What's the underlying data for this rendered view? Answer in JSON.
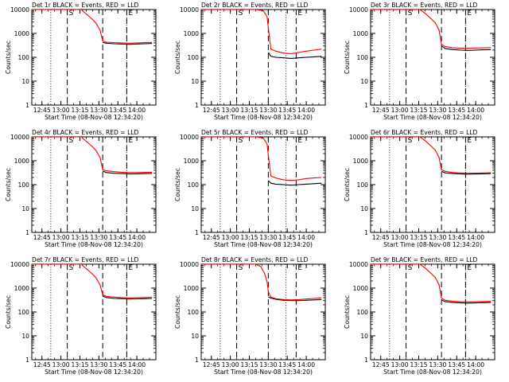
{
  "chart_data": [
    {
      "type": "line",
      "title": "Det 1r BLACK = Events, RED = LLD",
      "xlabel": "Start Time (08-Nov-08 12:34:20)",
      "ylabel": "Counts/sec",
      "y_scale": "log",
      "ylim": [
        1,
        10000
      ],
      "xlim": [
        "12:37",
        "14:15"
      ],
      "x_ticks": [
        "12:45",
        "13:00",
        "13:15",
        "13:30",
        "13:45",
        "14:00"
      ],
      "y_ticks": [
        "1",
        "10",
        "100",
        "1000",
        "10000"
      ],
      "markers": [
        {
          "label": "S",
          "x": "13:05"
        },
        {
          "label": "",
          "x": "13:33"
        },
        {
          "label": "E",
          "x": "13:52"
        }
      ],
      "reference_lines": [
        "12:52",
        "13:52"
      ],
      "series": [
        {
          "color": "#ff0000",
          "x": [
            "12:37",
            "13:05",
            "13:10",
            "13:16",
            "13:20",
            "13:24",
            "13:28",
            "13:31",
            "13:33",
            "13:36",
            "13:42",
            "13:48",
            "13:54",
            "14:00",
            "14:06",
            "14:12"
          ],
          "y": [
            10000,
            10000,
            10000,
            10000,
            6500,
            4300,
            2600,
            1300,
            480,
            430,
            410,
            400,
            390,
            400,
            410,
            420
          ]
        },
        {
          "color": "#000000",
          "x": [
            "13:33",
            "13:36",
            "13:42",
            "13:48",
            "13:54",
            "14:00",
            "14:06",
            "14:12"
          ],
          "y": [
            420,
            390,
            370,
            360,
            350,
            360,
            370,
            380
          ]
        }
      ]
    },
    {
      "type": "line",
      "title": "Det 2r BLACK = Events, RED = LLD",
      "xlabel": "Start Time (08-Nov-08 12:34:20)",
      "ylabel": "Counts/sec",
      "y_scale": "log",
      "ylim": [
        1,
        10000
      ],
      "xlim": [
        "12:37",
        "14:15"
      ],
      "x_ticks": [
        "12:45",
        "13:00",
        "13:15",
        "13:30",
        "13:45",
        "14:00"
      ],
      "y_ticks": [
        "1",
        "10",
        "100",
        "1000",
        "10000"
      ],
      "markers": [
        {
          "label": "S",
          "x": "13:05"
        },
        {
          "label": "",
          "x": "13:30"
        },
        {
          "label": "E",
          "x": "13:52"
        }
      ],
      "reference_lines": [
        "12:52",
        "13:44"
      ],
      "series": [
        {
          "color": "#ff0000",
          "x": [
            "12:37",
            "13:10",
            "13:20",
            "13:26",
            "13:29",
            "13:30",
            "13:32",
            "13:36",
            "13:42",
            "13:48",
            "13:54",
            "14:00",
            "14:06",
            "14:12"
          ],
          "y": [
            10000,
            10000,
            10000,
            9000,
            5000,
            1700,
            220,
            180,
            150,
            140,
            160,
            180,
            200,
            220
          ]
        },
        {
          "color": "#000000",
          "x": [
            "13:30",
            "13:32",
            "13:36",
            "13:42",
            "13:48",
            "13:54",
            "14:00",
            "14:06",
            "14:12"
          ],
          "y": [
            160,
            110,
            100,
            95,
            90,
            95,
            100,
            105,
            110
          ]
        }
      ]
    },
    {
      "type": "line",
      "title": "Det 3r BLACK = Events, RED = LLD",
      "xlabel": "Start Time (08-Nov-08 12:34:20)",
      "ylabel": "Counts/sec",
      "y_scale": "log",
      "ylim": [
        1,
        10000
      ],
      "xlim": [
        "12:37",
        "14:15"
      ],
      "x_ticks": [
        "12:45",
        "13:00",
        "13:15",
        "13:30",
        "13:45",
        "14:00"
      ],
      "y_ticks": [
        "1",
        "10",
        "100",
        "1000",
        "10000"
      ],
      "markers": [
        {
          "label": "S",
          "x": "13:05"
        },
        {
          "label": "",
          "x": "13:33"
        },
        {
          "label": "E",
          "x": "13:52"
        }
      ],
      "reference_lines": [
        "12:52",
        "13:52"
      ],
      "series": [
        {
          "color": "#ff0000",
          "x": [
            "12:37",
            "13:10",
            "13:16",
            "13:20",
            "13:24",
            "13:28",
            "13:31",
            "13:33",
            "13:36",
            "13:42",
            "13:48",
            "13:54",
            "14:00",
            "14:06",
            "14:12"
          ],
          "y": [
            10000,
            10000,
            10000,
            7000,
            4500,
            2800,
            1400,
            350,
            280,
            250,
            240,
            240,
            245,
            250,
            255
          ]
        },
        {
          "color": "#000000",
          "x": [
            "13:33",
            "13:36",
            "13:42",
            "13:48",
            "13:54",
            "14:00",
            "14:06",
            "14:12"
          ],
          "y": [
            300,
            230,
            210,
            200,
            195,
            200,
            205,
            210
          ]
        }
      ]
    },
    {
      "type": "line",
      "title": "Det 4r BLACK = Events, RED = LLD",
      "xlabel": "Start Time (08-Nov-08 12:34:20)",
      "ylabel": "Counts/sec",
      "y_scale": "log",
      "ylim": [
        1,
        10000
      ],
      "xlim": [
        "12:37",
        "14:15"
      ],
      "x_ticks": [
        "12:45",
        "13:00",
        "13:15",
        "13:30",
        "13:45",
        "14:00"
      ],
      "y_ticks": [
        "1",
        "10",
        "100",
        "1000",
        "10000"
      ],
      "markers": [
        {
          "label": "S",
          "x": "13:05"
        },
        {
          "label": "",
          "x": "13:33"
        },
        {
          "label": "E",
          "x": "13:52"
        }
      ],
      "reference_lines": [
        "12:52",
        "13:52"
      ],
      "series": [
        {
          "color": "#ff0000",
          "x": [
            "12:37",
            "13:05",
            "13:10",
            "13:16",
            "13:20",
            "13:24",
            "13:28",
            "13:31",
            "13:33",
            "13:36",
            "13:42",
            "13:48",
            "13:54",
            "14:00",
            "14:06",
            "14:12"
          ],
          "y": [
            10000,
            10000,
            10000,
            10000,
            6500,
            4300,
            2600,
            1300,
            420,
            380,
            350,
            330,
            320,
            320,
            325,
            330
          ]
        },
        {
          "color": "#000000",
          "x": [
            "13:33",
            "13:36",
            "13:42",
            "13:48",
            "13:54",
            "14:00",
            "14:06",
            "14:12"
          ],
          "y": [
            370,
            320,
            300,
            290,
            280,
            285,
            290,
            295
          ]
        }
      ]
    },
    {
      "type": "line",
      "title": "Det 5r BLACK = Events, RED = LLD",
      "xlabel": "Start Time (08-Nov-08 12:34:20)",
      "ylabel": "Counts/sec",
      "y_scale": "log",
      "ylim": [
        1,
        10000
      ],
      "xlim": [
        "12:37",
        "14:15"
      ],
      "x_ticks": [
        "12:45",
        "13:00",
        "13:15",
        "13:30",
        "13:45",
        "14:00"
      ],
      "y_ticks": [
        "1",
        "10",
        "100",
        "1000",
        "10000"
      ],
      "markers": [
        {
          "label": "S",
          "x": "13:05"
        },
        {
          "label": "",
          "x": "13:30"
        },
        {
          "label": "E",
          "x": "13:52"
        }
      ],
      "reference_lines": [
        "12:52",
        "13:44"
      ],
      "series": [
        {
          "color": "#ff0000",
          "x": [
            "12:37",
            "13:10",
            "13:20",
            "13:26",
            "13:29",
            "13:30",
            "13:32",
            "13:36",
            "13:42",
            "13:48",
            "13:54",
            "14:00",
            "14:06",
            "14:12"
          ],
          "y": [
            10000,
            10000,
            10000,
            9000,
            5000,
            1700,
            230,
            190,
            160,
            150,
            160,
            180,
            190,
            200
          ]
        },
        {
          "color": "#000000",
          "x": [
            "13:30",
            "13:32",
            "13:36",
            "13:42",
            "13:48",
            "13:54",
            "14:00",
            "14:06",
            "14:12"
          ],
          "y": [
            150,
            115,
            105,
            100,
            95,
            100,
            105,
            110,
            115
          ]
        }
      ]
    },
    {
      "type": "line",
      "title": "Det 6r BLACK = Events, RED = LLD",
      "xlabel": "Start Time (08-Nov-08 12:34:20)",
      "ylabel": "Counts/sec",
      "y_scale": "log",
      "ylim": [
        1,
        10000
      ],
      "xlim": [
        "12:37",
        "14:15"
      ],
      "x_ticks": [
        "12:45",
        "13:00",
        "13:15",
        "13:30",
        "13:45",
        "14:00"
      ],
      "y_ticks": [
        "1",
        "10",
        "100",
        "1000",
        "10000"
      ],
      "markers": [
        {
          "label": "S",
          "x": "13:05"
        },
        {
          "label": "",
          "x": "13:33"
        },
        {
          "label": "E",
          "x": "13:52"
        }
      ],
      "reference_lines": [
        "12:52",
        "13:52"
      ],
      "series": [
        {
          "color": "#ff0000",
          "x": [
            "12:37",
            "13:10",
            "13:16",
            "13:20",
            "13:24",
            "13:28",
            "13:31",
            "13:33",
            "13:36",
            "13:42",
            "13:48",
            "13:54",
            "14:00",
            "14:06",
            "14:12"
          ],
          "y": [
            10000,
            10000,
            10000,
            7000,
            4500,
            2800,
            1400,
            420,
            360,
            320,
            310,
            300,
            305,
            310,
            315
          ]
        },
        {
          "color": "#000000",
          "x": [
            "13:33",
            "13:36",
            "13:42",
            "13:48",
            "13:54",
            "14:00",
            "14:06",
            "14:12"
          ],
          "y": [
            360,
            310,
            290,
            280,
            275,
            280,
            285,
            290
          ]
        }
      ]
    },
    {
      "type": "line",
      "title": "Det 7r BLACK = Events, RED = LLD",
      "xlabel": "Start Time (08-Nov-08 12:34:20)",
      "ylabel": "Counts/sec",
      "y_scale": "log",
      "ylim": [
        1,
        10000
      ],
      "xlim": [
        "12:37",
        "14:15"
      ],
      "x_ticks": [
        "12:45",
        "13:00",
        "13:15",
        "13:30",
        "13:45",
        "14:00"
      ],
      "y_ticks": [
        "1",
        "10",
        "100",
        "1000",
        "10000"
      ],
      "markers": [
        {
          "label": "S",
          "x": "13:05"
        },
        {
          "label": "",
          "x": "13:33"
        },
        {
          "label": "E",
          "x": "13:52"
        }
      ],
      "reference_lines": [
        "12:52",
        "13:52"
      ],
      "series": [
        {
          "color": "#ff0000",
          "x": [
            "12:37",
            "13:05",
            "13:10",
            "13:16",
            "13:20",
            "13:24",
            "13:28",
            "13:31",
            "13:33",
            "13:36",
            "13:42",
            "13:48",
            "13:54",
            "14:00",
            "14:06",
            "14:12"
          ],
          "y": [
            10000,
            10000,
            10000,
            10000,
            6500,
            4300,
            2600,
            1300,
            520,
            450,
            420,
            400,
            390,
            395,
            405,
            415
          ]
        },
        {
          "color": "#000000",
          "x": [
            "13:33",
            "13:36",
            "13:42",
            "13:48",
            "13:54",
            "14:00",
            "14:06",
            "14:12"
          ],
          "y": [
            460,
            400,
            370,
            360,
            350,
            355,
            360,
            370
          ]
        }
      ]
    },
    {
      "type": "line",
      "title": "Det 8r BLACK = Events, RED = LLD",
      "xlabel": "Start Time (08-Nov-08 12:34:20)",
      "ylabel": "Counts/sec",
      "y_scale": "log",
      "ylim": [
        1,
        10000
      ],
      "xlim": [
        "12:37",
        "14:15"
      ],
      "x_ticks": [
        "12:45",
        "13:00",
        "13:15",
        "13:30",
        "13:45",
        "14:00"
      ],
      "y_ticks": [
        "1",
        "10",
        "100",
        "1000",
        "10000"
      ],
      "markers": [
        {
          "label": "S",
          "x": "13:05"
        },
        {
          "label": "",
          "x": "13:30"
        },
        {
          "label": "E",
          "x": "13:52"
        }
      ],
      "reference_lines": [
        "12:52",
        "13:44"
      ],
      "series": [
        {
          "color": "#ff0000",
          "x": [
            "12:37",
            "13:10",
            "13:20",
            "13:24",
            "13:27",
            "13:29",
            "13:30",
            "13:32",
            "13:36",
            "13:42",
            "13:48",
            "13:54",
            "14:00",
            "14:06",
            "14:12"
          ],
          "y": [
            10000,
            10000,
            10000,
            8000,
            4200,
            1800,
            700,
            420,
            360,
            330,
            320,
            330,
            350,
            370,
            390
          ]
        },
        {
          "color": "#000000",
          "x": [
            "13:30",
            "13:32",
            "13:36",
            "13:42",
            "13:48",
            "13:54",
            "14:00",
            "14:06",
            "14:12"
          ],
          "y": [
            430,
            380,
            340,
            310,
            300,
            300,
            310,
            320,
            330
          ]
        }
      ]
    },
    {
      "type": "line",
      "title": "Det 9r BLACK = Events, RED = LLD",
      "xlabel": "Start Time (08-Nov-08 12:34:20)",
      "ylabel": "Counts/sec",
      "y_scale": "log",
      "ylim": [
        1,
        10000
      ],
      "xlim": [
        "12:37",
        "14:15"
      ],
      "x_ticks": [
        "12:45",
        "13:00",
        "13:15",
        "13:30",
        "13:45",
        "14:00"
      ],
      "y_ticks": [
        "1",
        "10",
        "100",
        "1000",
        "10000"
      ],
      "markers": [
        {
          "label": "S",
          "x": "13:05"
        },
        {
          "label": "",
          "x": "13:33"
        },
        {
          "label": "E",
          "x": "13:52"
        }
      ],
      "reference_lines": [
        "12:52",
        "13:52"
      ],
      "series": [
        {
          "color": "#ff0000",
          "x": [
            "12:37",
            "13:10",
            "13:16",
            "13:20",
            "13:24",
            "13:28",
            "13:31",
            "13:33",
            "13:36",
            "13:42",
            "13:48",
            "13:54",
            "14:00",
            "14:06",
            "14:12"
          ],
          "y": [
            10000,
            10000,
            10000,
            7000,
            4500,
            2800,
            1400,
            380,
            310,
            280,
            270,
            265,
            270,
            275,
            280
          ]
        },
        {
          "color": "#000000",
          "x": [
            "13:33",
            "13:36",
            "13:42",
            "13:48",
            "13:54",
            "14:00",
            "14:06",
            "14:12"
          ],
          "y": [
            320,
            270,
            250,
            240,
            235,
            240,
            245,
            250
          ]
        }
      ]
    }
  ]
}
